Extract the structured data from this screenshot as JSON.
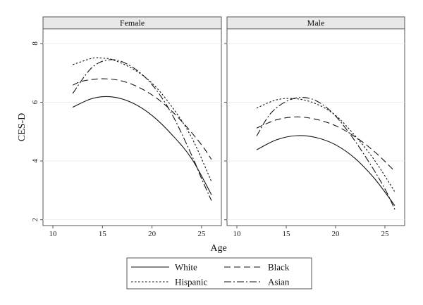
{
  "chart_data": {
    "type": "line",
    "xlabel": "Age",
    "ylabel": "CES-D",
    "xlim": [
      9,
      27
    ],
    "ylim": [
      1.8,
      8.5
    ],
    "xticks": [
      10,
      15,
      20,
      25
    ],
    "yticks": [
      2,
      4,
      6,
      8
    ],
    "grid": true,
    "legend_placement": "bottom",
    "panels": [
      {
        "title": "Female",
        "series": [
          {
            "name": "White",
            "dash": "solid",
            "points": [
              [
                12,
                5.83
              ],
              [
                14,
                6.13
              ],
              [
                16,
                6.18
              ],
              [
                18,
                5.98
              ],
              [
                20,
                5.55
              ],
              [
                22,
                4.9
              ],
              [
                24,
                4.08
              ],
              [
                26,
                2.85
              ]
            ]
          },
          {
            "name": "Hispanic",
            "dash": "dot",
            "points": [
              [
                12,
                7.28
              ],
              [
                14,
                7.5
              ],
              [
                15,
                7.5
              ],
              [
                16,
                7.45
              ],
              [
                18,
                7.15
              ],
              [
                20,
                6.65
              ],
              [
                22,
                5.85
              ],
              [
                24,
                4.8
              ],
              [
                26,
                3.3
              ]
            ]
          },
          {
            "name": "Black",
            "dash": "dash",
            "points": [
              [
                12,
                6.58
              ],
              [
                13,
                6.72
              ],
              [
                15,
                6.8
              ],
              [
                17,
                6.72
              ],
              [
                19,
                6.45
              ],
              [
                21,
                6.0
              ],
              [
                23,
                5.35
              ],
              [
                25,
                4.55
              ],
              [
                26,
                4.05
              ]
            ]
          },
          {
            "name": "Asian",
            "dash": "dashdot",
            "points": [
              [
                12,
                6.3
              ],
              [
                14,
                7.2
              ],
              [
                16,
                7.45
              ],
              [
                18,
                7.2
              ],
              [
                20,
                6.6
              ],
              [
                22,
                5.6
              ],
              [
                24,
                4.2
              ],
              [
                25,
                3.4
              ],
              [
                26,
                2.65
              ]
            ]
          }
        ]
      },
      {
        "title": "Male",
        "series": [
          {
            "name": "White",
            "dash": "solid",
            "points": [
              [
                12,
                4.38
              ],
              [
                14,
                4.72
              ],
              [
                16,
                4.86
              ],
              [
                18,
                4.8
              ],
              [
                20,
                4.55
              ],
              [
                22,
                4.08
              ],
              [
                24,
                3.38
              ],
              [
                26,
                2.48
              ]
            ]
          },
          {
            "name": "Hispanic",
            "dash": "dot",
            "points": [
              [
                12,
                5.8
              ],
              [
                14,
                6.08
              ],
              [
                16,
                6.12
              ],
              [
                18,
                5.95
              ],
              [
                20,
                5.55
              ],
              [
                22,
                4.85
              ],
              [
                24,
                4.0
              ],
              [
                26,
                2.95
              ]
            ]
          },
          {
            "name": "Black",
            "dash": "dash",
            "points": [
              [
                12,
                5.12
              ],
              [
                14,
                5.4
              ],
              [
                16,
                5.5
              ],
              [
                18,
                5.42
              ],
              [
                20,
                5.2
              ],
              [
                22,
                4.82
              ],
              [
                24,
                4.3
              ],
              [
                26,
                3.65
              ]
            ]
          },
          {
            "name": "Asian",
            "dash": "dashdot",
            "points": [
              [
                12,
                4.85
              ],
              [
                13.5,
                5.65
              ],
              [
                15.5,
                6.1
              ],
              [
                17.5,
                6.12
              ],
              [
                19.5,
                5.7
              ],
              [
                21.5,
                4.9
              ],
              [
                23.5,
                3.9
              ],
              [
                25,
                3.05
              ],
              [
                26,
                2.35
              ]
            ]
          }
        ]
      }
    ],
    "legend": [
      "White",
      "Black",
      "Hispanic",
      "Asian"
    ]
  }
}
